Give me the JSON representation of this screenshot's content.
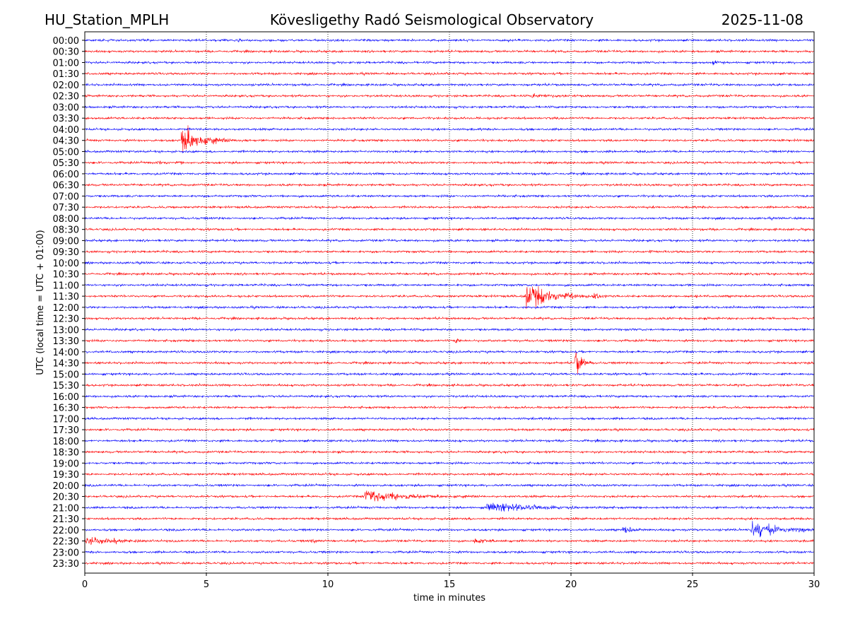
{
  "header": {
    "station": "HU_Station_MPLH",
    "title": "Kövesligethy Radó Seismological Observatory",
    "date": "2025-11-08"
  },
  "chart_data": {
    "type": "line",
    "title": "Kövesligethy Radó Seismological Observatory",
    "xlabel": "time in minutes",
    "ylabel": "UTC (local time = UTC + 01:00)",
    "xlim": [
      0,
      30
    ],
    "xticks": [
      "0",
      "5",
      "10",
      "15",
      "20",
      "25",
      "30"
    ],
    "xtick_values": [
      0,
      5,
      10,
      15,
      20,
      25,
      30
    ],
    "grid": "vertical dotted at x ticks",
    "row_labels": [
      "00:00",
      "00:30",
      "01:00",
      "01:30",
      "02:00",
      "02:30",
      "03:00",
      "03:30",
      "04:00",
      "04:30",
      "05:00",
      "05:30",
      "06:00",
      "06:30",
      "07:00",
      "07:30",
      "08:00",
      "08:30",
      "09:00",
      "09:30",
      "10:00",
      "10:30",
      "11:00",
      "11:30",
      "12:00",
      "12:30",
      "13:00",
      "13:30",
      "14:00",
      "14:30",
      "15:00",
      "15:30",
      "16:00",
      "16:30",
      "17:00",
      "17:30",
      "18:00",
      "18:30",
      "19:00",
      "19:30",
      "20:00",
      "20:30",
      "21:00",
      "21:30",
      "22:00",
      "22:30",
      "23:00",
      "23:30"
    ],
    "series_colors": [
      "#0000ff",
      "#ff0000"
    ],
    "noise_amplitude": 0.13,
    "events": [
      {
        "row": "00:00",
        "start_min": 6.2,
        "duration_min": 0.3,
        "amplitude": 0.35
      },
      {
        "row": "01:00",
        "start_min": 25.8,
        "duration_min": 0.6,
        "amplitude": 0.3
      },
      {
        "row": "02:30",
        "start_min": 18.4,
        "duration_min": 1.4,
        "amplitude": 0.3
      },
      {
        "row": "04:30",
        "start_min": 3.95,
        "duration_min": 2.1,
        "amplitude": 2.6
      },
      {
        "row": "05:30",
        "start_min": 2.9,
        "duration_min": 1.0,
        "amplitude": 0.3
      },
      {
        "row": "05:30",
        "start_min": 3.9,
        "duration_min": 0.15,
        "amplitude": 0.8
      },
      {
        "row": "09:30",
        "start_min": 23.2,
        "duration_min": 0.5,
        "amplitude": 0.3
      },
      {
        "row": "11:30",
        "start_min": 18.1,
        "duration_min": 2.6,
        "amplitude": 2.4
      },
      {
        "row": "11:30",
        "start_min": 20.85,
        "duration_min": 0.4,
        "amplitude": 0.9
      },
      {
        "row": "11:30",
        "start_min": 25.1,
        "duration_min": 0.15,
        "amplitude": 0.5
      },
      {
        "row": "13:30",
        "start_min": 15.2,
        "duration_min": 0.4,
        "amplitude": 0.6
      },
      {
        "row": "14:30",
        "start_min": 20.15,
        "duration_min": 0.6,
        "amplitude": 3.0
      },
      {
        "row": "20:30",
        "start_min": 11.5,
        "duration_min": 4.0,
        "amplitude": 1.0
      },
      {
        "row": "21:00",
        "start_min": 16.5,
        "duration_min": 4.0,
        "amplitude": 0.9
      },
      {
        "row": "22:00",
        "start_min": 22.1,
        "duration_min": 0.8,
        "amplitude": 0.9
      },
      {
        "row": "22:00",
        "start_min": 27.4,
        "duration_min": 2.6,
        "amplitude": 1.5
      },
      {
        "row": "22:30",
        "start_min": 0.0,
        "duration_min": 2.8,
        "amplitude": 0.6
      },
      {
        "row": "22:30",
        "start_min": 9.3,
        "duration_min": 0.6,
        "amplitude": 0.45
      },
      {
        "row": "22:30",
        "start_min": 16.0,
        "duration_min": 1.3,
        "amplitude": 0.4
      }
    ]
  }
}
